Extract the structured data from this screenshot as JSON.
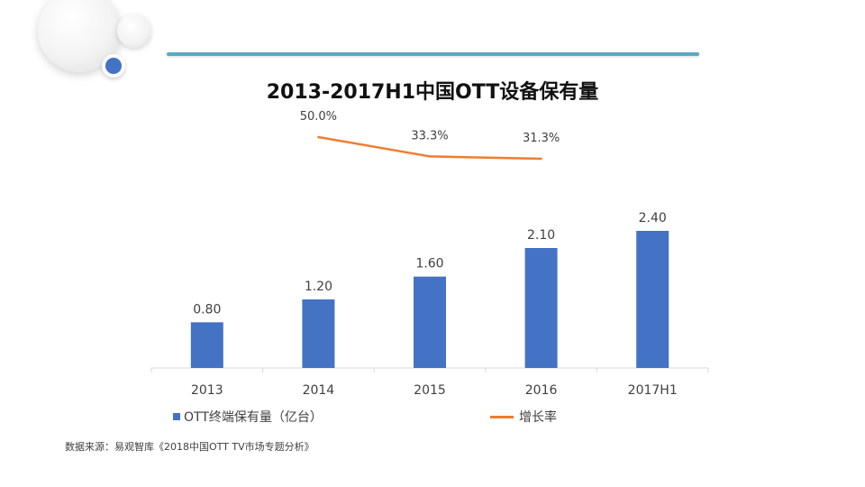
{
  "chart_data": {
    "type": "bar",
    "title": "2013-2017H1中国OTT设备保有量",
    "categories": [
      "2013",
      "2014",
      "2015",
      "2016",
      "2017H1"
    ],
    "series": [
      {
        "name": "OTT终端保有量（亿台）",
        "type": "bar",
        "color": "#4472c4",
        "values": [
          0.8,
          1.2,
          1.6,
          2.1,
          2.4
        ],
        "labels": [
          "0.80",
          "1.20",
          "1.60",
          "2.10",
          "2.40"
        ]
      },
      {
        "name": "增长率",
        "type": "line",
        "color": "#ed7d31",
        "values": [
          null,
          50.0,
          33.3,
          31.3,
          null
        ],
        "labels": [
          "",
          "50.0%",
          "33.3%",
          "31.3%",
          ""
        ]
      }
    ],
    "ylim": [
      0,
      2.4
    ],
    "grid": false,
    "legend_position": "bottom"
  },
  "source_note": "数据来源：易观智库《2018中国OTT TV市场专题分析》"
}
